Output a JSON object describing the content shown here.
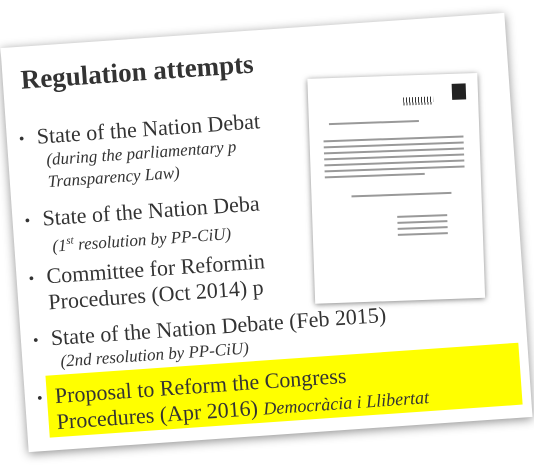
{
  "title": "Regulation attempts",
  "items": [
    {
      "main": [
        "State of the Nation Debat"
      ],
      "sub": [
        "(during the parliamentary p",
        "Transparency Law)"
      ]
    },
    {
      "main": [
        "State of the Nation Deba"
      ],
      "sub_prefix": "(1",
      "sub_sup": "st",
      "sub_rest": " resolution by PP-CiU)"
    },
    {
      "main": [
        "Committee for Reformin",
        "Procedures (Oct 2014) p"
      ]
    },
    {
      "main": [
        "State of the Nation Debate (Feb 2015)"
      ],
      "sub": [
        "(2nd resolution by PP-CiU)"
      ]
    },
    {
      "main": [
        "Proposal to Reform the Congress",
        "Procedures (Apr 2016)"
      ],
      "tail": "Democràcia i Llibertat"
    }
  ]
}
